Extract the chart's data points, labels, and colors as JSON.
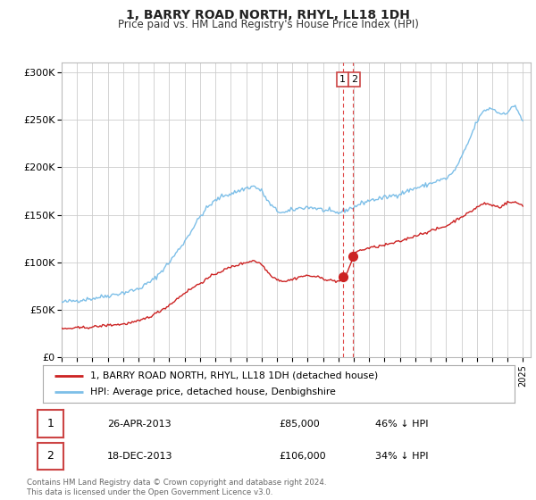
{
  "title": "1, BARRY ROAD NORTH, RHYL, LL18 1DH",
  "subtitle": "Price paid vs. HM Land Registry's House Price Index (HPI)",
  "hpi_color": "#7dbfe8",
  "price_color": "#cc2222",
  "marker_color": "#cc2222",
  "dashed_line_color": "#dd3333",
  "background_color": "#ffffff",
  "grid_color": "#cccccc",
  "legend_entries": [
    "1, BARRY ROAD NORTH, RHYL, LL18 1DH (detached house)",
    "HPI: Average price, detached house, Denbighshire"
  ],
  "table_rows": [
    {
      "num": "1",
      "date": "26-APR-2013",
      "price": "£85,000",
      "pct": "46% ↓ HPI"
    },
    {
      "num": "2",
      "date": "18-DEC-2013",
      "price": "£106,000",
      "pct": "34% ↓ HPI"
    }
  ],
  "footnote": "Contains HM Land Registry data © Crown copyright and database right 2024.\nThis data is licensed under the Open Government Licence v3.0.",
  "sale1_date_num": 2013.32,
  "sale1_price": 85000,
  "sale2_date_num": 2013.96,
  "sale2_price": 106000,
  "ylim": [
    0,
    310000
  ],
  "yticks": [
    0,
    50000,
    100000,
    150000,
    200000,
    250000,
    300000
  ],
  "ytick_labels": [
    "£0",
    "£50K",
    "£100K",
    "£150K",
    "£200K",
    "£250K",
    "£300K"
  ],
  "hpi_anchors_x": [
    1995.0,
    1996.0,
    1997.0,
    1998.0,
    1999.0,
    2000.0,
    2001.0,
    2002.0,
    2003.0,
    2003.5,
    2004.0,
    2004.5,
    2005.0,
    2005.5,
    2006.0,
    2006.5,
    2007.0,
    2007.5,
    2008.0,
    2008.5,
    2009.0,
    2009.5,
    2010.0,
    2010.5,
    2011.0,
    2011.5,
    2012.0,
    2012.5,
    2013.0,
    2013.5,
    2014.0,
    2014.5,
    2015.0,
    2016.0,
    2017.0,
    2017.5,
    2018.0,
    2018.5,
    2019.0,
    2019.5,
    2020.0,
    2020.5,
    2021.0,
    2021.5,
    2022.0,
    2022.5,
    2023.0,
    2023.5,
    2024.0,
    2024.5,
    2025.0
  ],
  "hpi_anchors_y": [
    58000,
    60000,
    62000,
    65000,
    68000,
    72000,
    82000,
    100000,
    122000,
    135000,
    148000,
    158000,
    165000,
    170000,
    172000,
    175000,
    178000,
    180000,
    175000,
    162000,
    154000,
    152000,
    155000,
    157000,
    158000,
    157000,
    155000,
    153000,
    152000,
    155000,
    158000,
    162000,
    165000,
    168000,
    172000,
    175000,
    178000,
    180000,
    183000,
    186000,
    188000,
    195000,
    210000,
    228000,
    248000,
    260000,
    262000,
    256000,
    258000,
    265000,
    248000
  ],
  "price_anchors_x": [
    1995.0,
    1996.0,
    1997.0,
    1998.0,
    1999.0,
    2000.0,
    2001.0,
    2002.0,
    2003.0,
    2004.0,
    2005.0,
    2006.0,
    2007.0,
    2007.5,
    2008.0,
    2008.5,
    2009.0,
    2009.5,
    2010.0,
    2010.5,
    2011.0,
    2011.5,
    2012.0,
    2012.5,
    2013.0,
    2013.32,
    2013.5,
    2013.96,
    2014.0,
    2014.5,
    2015.0,
    2016.0,
    2017.0,
    2018.0,
    2019.0,
    2020.0,
    2020.5,
    2021.0,
    2021.5,
    2022.0,
    2022.5,
    2023.0,
    2023.5,
    2024.0,
    2024.5,
    2025.0
  ],
  "price_anchors_y": [
    30000,
    31000,
    32000,
    34000,
    35000,
    38000,
    45000,
    55000,
    68000,
    78000,
    88000,
    95000,
    100000,
    102000,
    98000,
    88000,
    82000,
    80000,
    82000,
    85000,
    86000,
    85000,
    83000,
    81000,
    80000,
    85000,
    86000,
    106000,
    110000,
    113000,
    115000,
    118000,
    122000,
    128000,
    133000,
    138000,
    143000,
    148000,
    152000,
    158000,
    162000,
    160000,
    158000,
    163000,
    163000,
    160000
  ]
}
